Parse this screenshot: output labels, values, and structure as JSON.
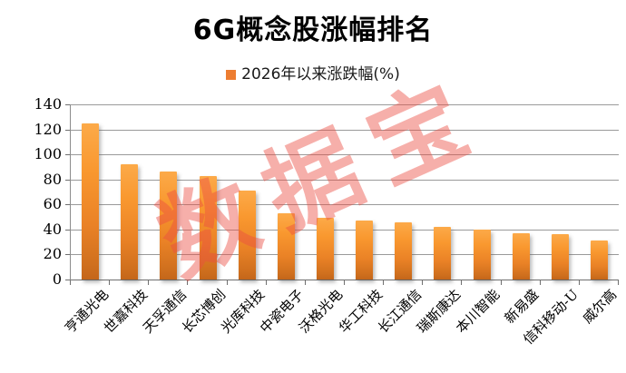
{
  "title": "6G概念股涨幅排名",
  "legend": {
    "label": "2026年以来涨跌幅(%)",
    "swatch_color": "#ED7D31"
  },
  "watermark": "数据宝",
  "colors": {
    "bar_top": "#FCAA49",
    "bar_bottom": "#C4661A",
    "gridline": "#9A9A9A",
    "axis": "#6F6F6F",
    "watermark_red": "#EC4E42",
    "text": "#000000"
  },
  "chart_data": {
    "type": "bar",
    "title": "6G概念股涨幅排名",
    "legend_entries": [
      "2026年以来涨跌幅(%)"
    ],
    "legend_position": "top",
    "xlabel": "",
    "ylabel": "",
    "ylim": [
      0,
      140
    ],
    "ytick_step": 20,
    "yticks": [
      0,
      20,
      40,
      60,
      80,
      100,
      120,
      140
    ],
    "grid": true,
    "categories": [
      "亨通光电",
      "世嘉科技",
      "天孚通信",
      "长芯博创",
      "光库科技",
      "中瓷电子",
      "沃格光电",
      "华工科技",
      "长江通信",
      "瑞斯康达",
      "本川智能",
      "新易盛",
      "信科移动-U",
      "威尔高"
    ],
    "values": [
      125,
      92,
      86,
      83,
      71,
      53,
      49,
      47,
      46,
      42,
      40,
      37,
      36,
      31
    ]
  }
}
